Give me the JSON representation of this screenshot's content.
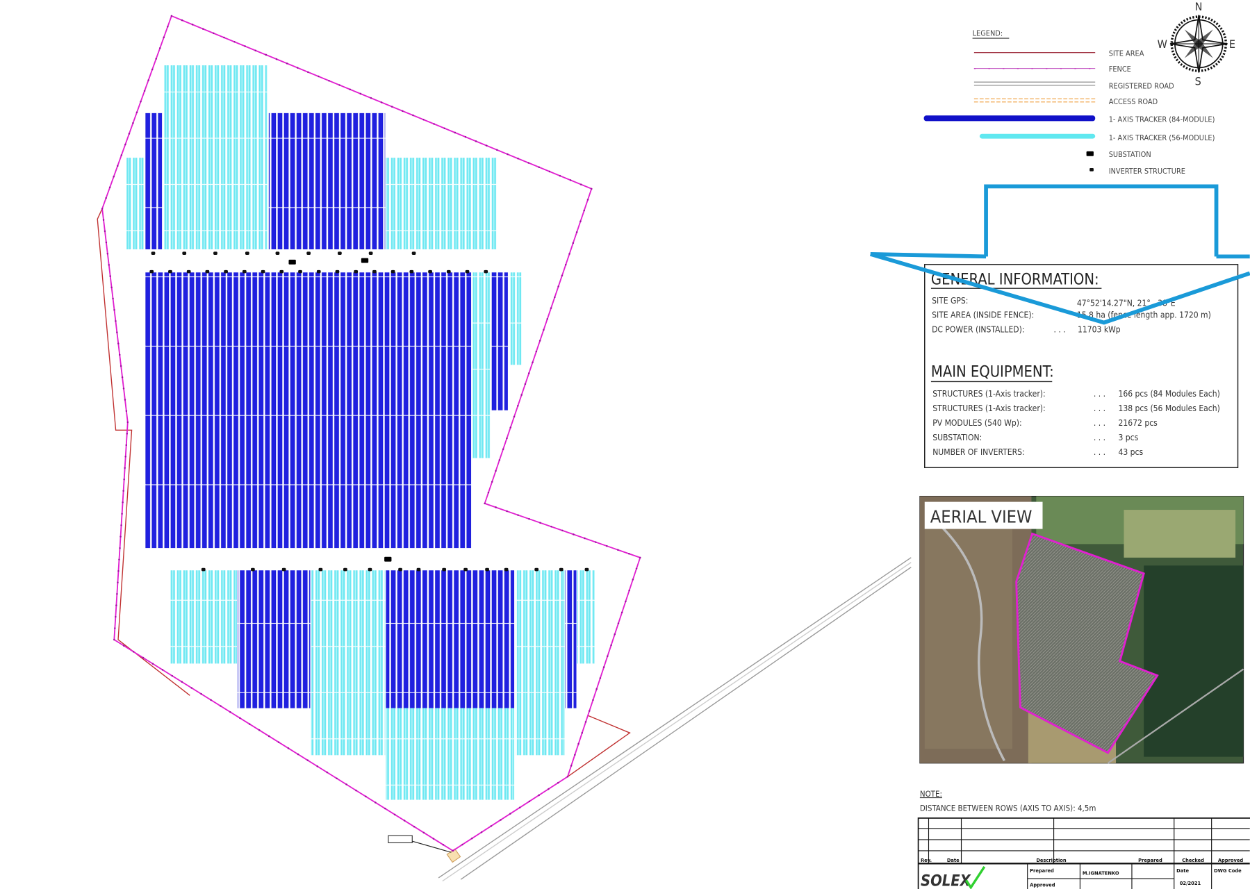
{
  "legend": {
    "title": "LEGEND:",
    "items": [
      {
        "label": "SITE AREA",
        "color": "#b03040"
      },
      {
        "label": "FENCE",
        "color": "#e020d0"
      },
      {
        "label": "REGISTERED ROAD",
        "color": "#999999"
      },
      {
        "label": "ACCESS ROAD",
        "color": "#f0a040"
      },
      {
        "label": "1- AXIS TRACKER (84-MODULE)",
        "color": "#1010d0"
      },
      {
        "label": "1- AXIS TRACKER (56-MODULE)",
        "color": "#60e8f0"
      },
      {
        "label": "SUBSTATION",
        "color": "#000000"
      },
      {
        "label": "INVERTER STRUCTURE",
        "color": "#000000"
      }
    ]
  },
  "compass": {
    "n": "N",
    "s": "S",
    "e": "E",
    "w": "W"
  },
  "general_info": {
    "title": "GENERAL INFORMATION:",
    "rows": [
      {
        "label": "SITE GPS:",
        "value": "47°52'14.27\"N,  21°...38\"E"
      },
      {
        "label": "SITE AREA (INSIDE FENCE):",
        "value": "15,8 ha (fence length app. 1720 m)"
      },
      {
        "label": "DC POWER (INSTALLED):",
        "value": "11703 kWp"
      }
    ]
  },
  "main_equipment": {
    "title": "MAIN EQUIPMENT:",
    "rows": [
      {
        "label": "STRUCTURES (1-Axis tracker):",
        "value": "166 pcs (84 Modules Each)"
      },
      {
        "label": "STRUCTURES (1-Axis tracker):",
        "value": "138 pcs (56 Modules Each)"
      },
      {
        "label": "PV MODULES (540 Wp):",
        "value": "21672 pcs"
      },
      {
        "label": "SUBSTATION:",
        "value": "3 pcs"
      },
      {
        "label": "NUMBER OF INVERTERS:",
        "value": "43 pcs"
      }
    ]
  },
  "aerial_view": {
    "title": "AERIAL VIEW"
  },
  "note": {
    "title": "NOTE:",
    "text": "DISTANCE BETWEEN ROWS (AXIS TO AXIS): 4,5m"
  },
  "title_block": {
    "headers": [
      "Rev.",
      "Date",
      "Description",
      "Prepared",
      "Checked",
      "Approved"
    ],
    "logo": "SOLEX",
    "prepared_label": "Prepared",
    "prepared_value": "M.IGNATENKO",
    "approved_label": "Approved",
    "date_label": "Date",
    "date_value": "02/2021",
    "dwg_label": "DWG Code"
  },
  "colors": {
    "tracker84": "#1010d0",
    "tracker56": "#60e8f0",
    "fence": "#e020d0",
    "site": "#c03030",
    "annotation": "#1a9ad8"
  }
}
